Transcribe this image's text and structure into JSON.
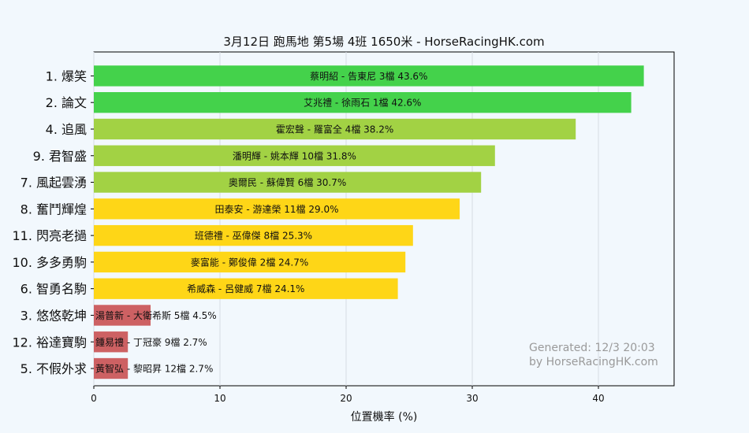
{
  "chart_data": {
    "type": "bar",
    "orientation": "horizontal",
    "title": "3月12日  跑馬地  第5場  4班  1650米 - HorseRacingHK.com",
    "xlabel": "位置機率 (%)",
    "ylabel": "",
    "xlim": [
      0,
      46
    ],
    "xticks": [
      "0",
      "10",
      "20",
      "30",
      "40"
    ],
    "grid": true,
    "legend": "none",
    "categories": [
      "1. 爆笑",
      "2. 論文",
      "4. 追風",
      "9. 君智盛",
      "7. 風起雲湧",
      "8. 奮鬥輝煌",
      "11. 閃亮老撾",
      "10. 多多勇駒",
      "6. 智勇名駒",
      "3. 悠悠乾坤",
      "12. 裕達寶駒",
      "5. 不假外求"
    ],
    "values": [
      43.6,
      42.6,
      38.2,
      31.8,
      30.7,
      29.0,
      25.3,
      24.7,
      24.1,
      4.5,
      2.7,
      2.7
    ],
    "bar_labels": [
      "蔡明紹 - 告東尼 3檔  43.6%",
      "艾兆禮 - 徐雨石 1檔  42.6%",
      "霍宏聲 - 羅富全 4檔  38.2%",
      "潘明輝 - 姚本輝 10檔  31.8%",
      "奧爾民 - 蘇偉賢 6檔  30.7%",
      "田泰安 - 游達榮 11檔  29.0%",
      "班德禮 - 巫偉傑 8檔  25.3%",
      "麥富能 - 鄭俊偉 2檔  24.7%",
      "希威森 - 呂健威 7檔  24.1%",
      "湯普新 - 大衛希斯 5檔  4.5%",
      "鍾易禮 - 丁冠豪 9檔  2.7%",
      "黃智弘 - 黎昭昇 12檔  2.7%"
    ],
    "colors": [
      "#44d24b",
      "#44d24b",
      "#a2d244",
      "#a2d244",
      "#a2d244",
      "#fed617",
      "#fed617",
      "#fed617",
      "#fed617",
      "#cd6163",
      "#cd6163",
      "#cd6163"
    ],
    "watermark": [
      "Generated: 12/3 20:03",
      "by HorseRacingHK.com"
    ]
  }
}
